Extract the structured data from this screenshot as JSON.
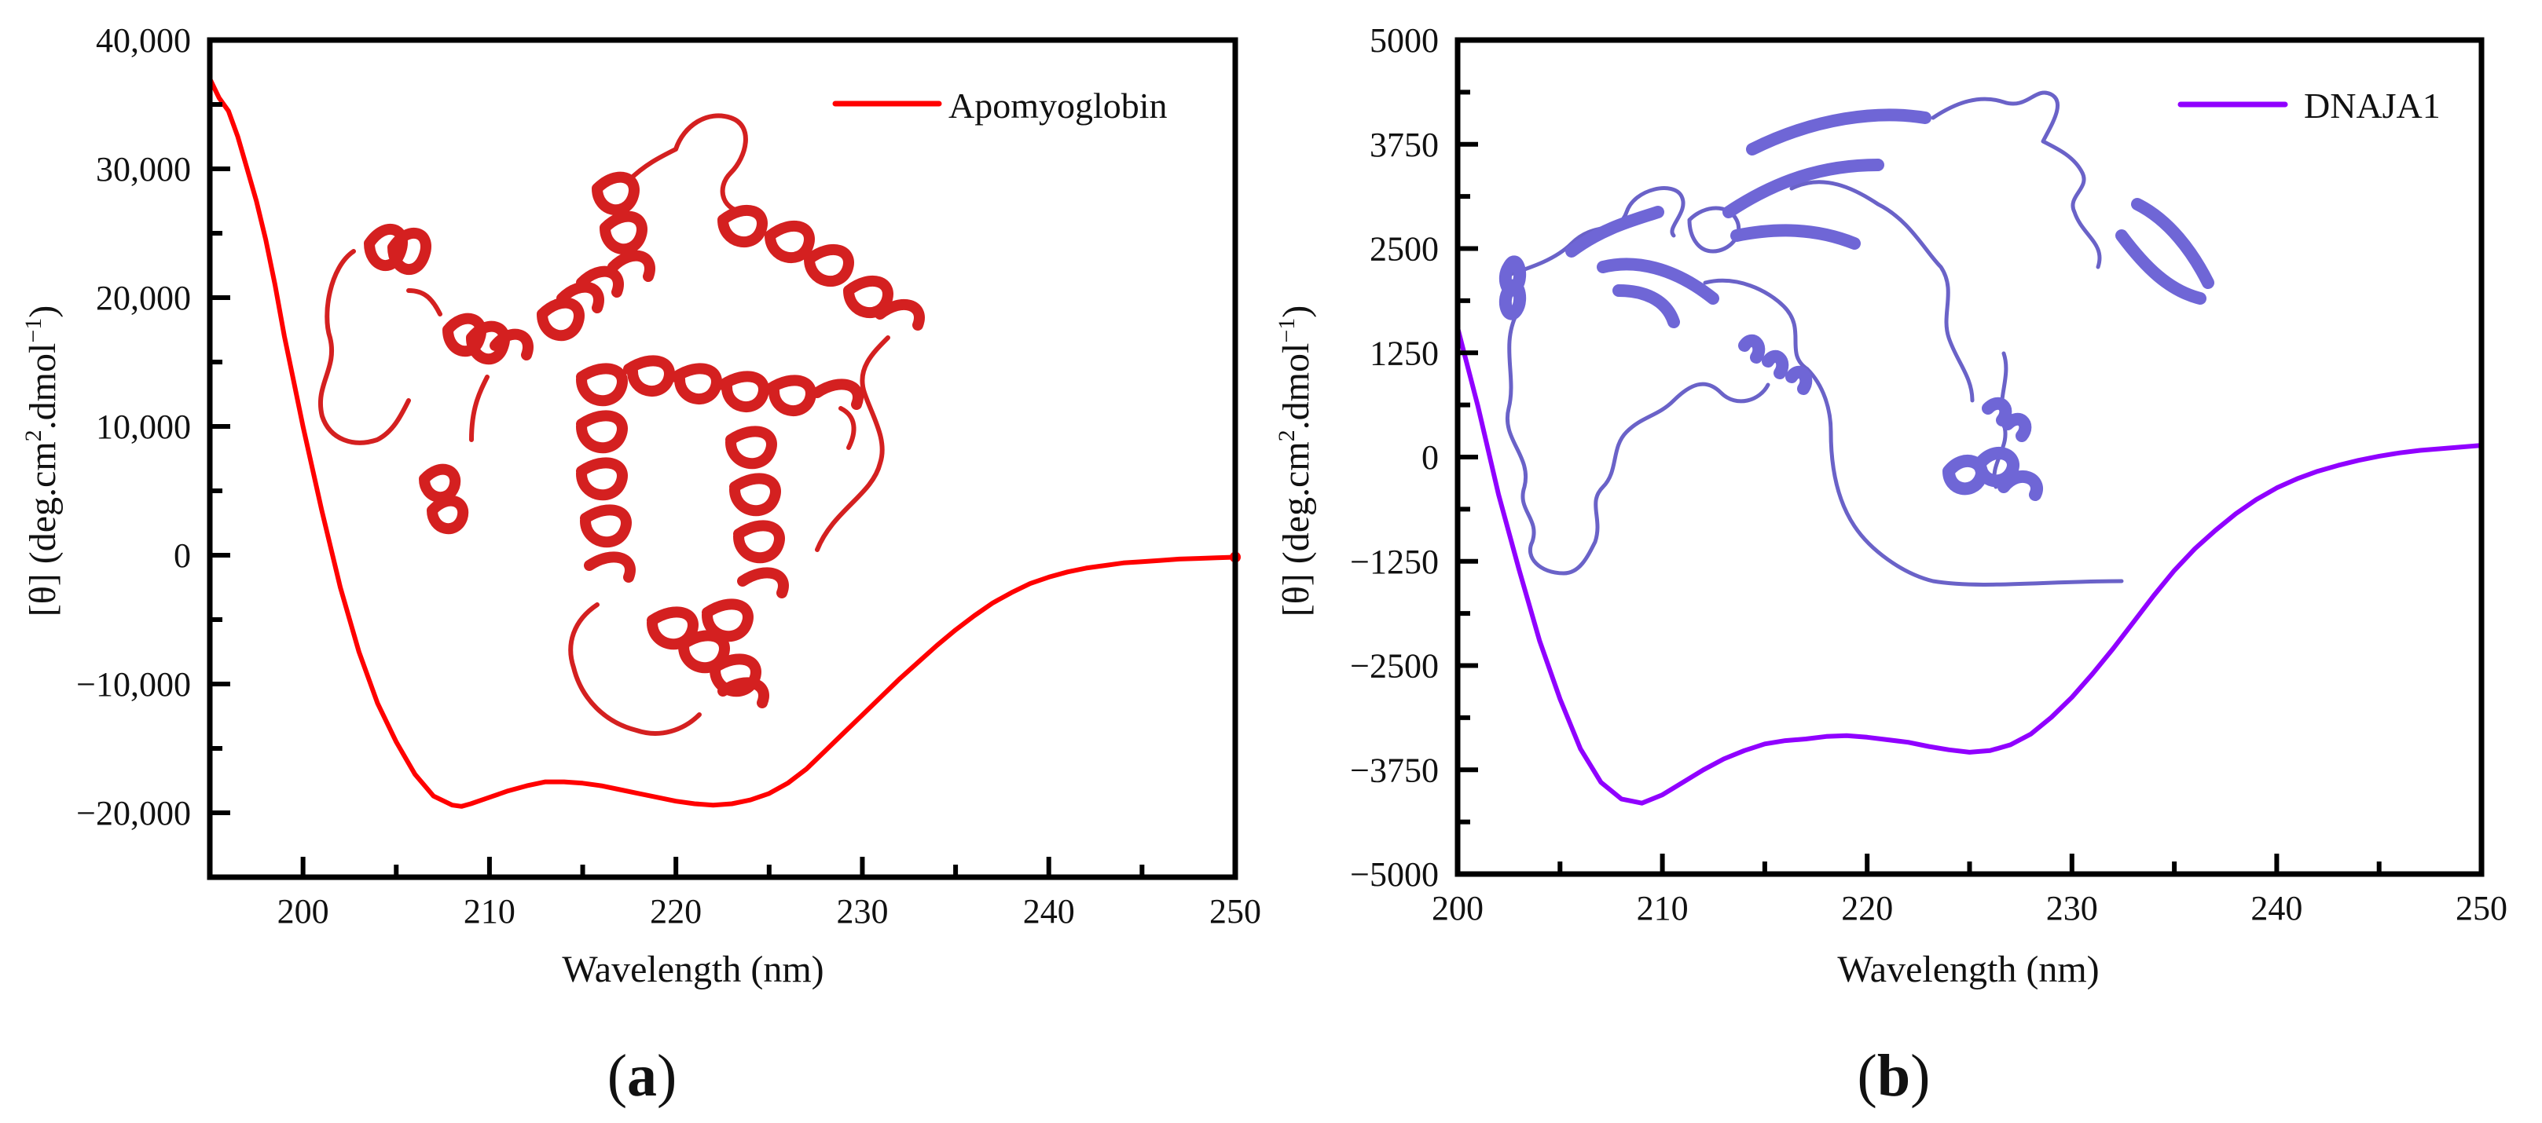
{
  "figure": {
    "panels": [
      {
        "id": "a",
        "label_open": "(",
        "label_letter": "a",
        "label_close": ")",
        "legend": "Apomyoglobin",
        "xlabel": "Wavelength (nm)",
        "ylabel": "[θ] (deg.cm².dmol⁻¹)",
        "line_color": "#ff0000",
        "structure_color": "#d42020"
      },
      {
        "id": "b",
        "label_open": "(",
        "label_letter": "b",
        "label_close": ")",
        "legend": "DNAJA1",
        "xlabel": "Wavelength (nm)",
        "ylabel": "[θ] (deg.cm².dmol⁻¹)",
        "line_color": "#9000ff",
        "structure_color": "#6a62c8"
      }
    ]
  },
  "chart_data": [
    {
      "type": "line",
      "title": "(a)",
      "xlabel": "Wavelength (nm)",
      "ylabel": "[θ] (deg.cm².dmol⁻¹)",
      "xlim": [
        195,
        250
      ],
      "ylim": [
        -25000,
        40000
      ],
      "xticks": [
        200,
        210,
        220,
        230,
        240,
        250
      ],
      "xtick_labels": [
        "200",
        "210",
        "220",
        "230",
        "240",
        "250"
      ],
      "yticks": [
        -20000,
        -10000,
        0,
        10000,
        20000,
        30000,
        40000
      ],
      "ytick_labels": [
        "−20,000",
        "−10,000",
        "0",
        "10,000",
        "20,000",
        "30,000",
        "40,000"
      ],
      "x_minor_step": 5,
      "y_minor_step": 5000,
      "grid": false,
      "legend_position": "upper right",
      "series": [
        {
          "name": "Apomyoglobin",
          "color": "#ff0000",
          "x": [
            195,
            195.5,
            196,
            196.5,
            197,
            197.5,
            198,
            198.5,
            199,
            199.5,
            200,
            201,
            202,
            203,
            204,
            205,
            206,
            207,
            208,
            208.5,
            209,
            210,
            211,
            212,
            213,
            214,
            215,
            216,
            217,
            218,
            219,
            220,
            221,
            222,
            223,
            224,
            225,
            226,
            227,
            228,
            229,
            230,
            231,
            232,
            233,
            234,
            235,
            236,
            237,
            238,
            239,
            240,
            241,
            242,
            243,
            244,
            245,
            246,
            247,
            248,
            249,
            250
          ],
          "y": [
            37000,
            35500,
            34500,
            32500,
            30000,
            27500,
            24500,
            21000,
            17000,
            13500,
            10000,
            3500,
            -2500,
            -7500,
            -11500,
            -14500,
            -17000,
            -18700,
            -19400,
            -19500,
            -19300,
            -18800,
            -18300,
            -17900,
            -17600,
            -17600,
            -17700,
            -17900,
            -18200,
            -18500,
            -18800,
            -19100,
            -19300,
            -19400,
            -19300,
            -19000,
            -18500,
            -17700,
            -16600,
            -15200,
            -13800,
            -12400,
            -11000,
            -9600,
            -8300,
            -7000,
            -5800,
            -4700,
            -3700,
            -2900,
            -2200,
            -1700,
            -1300,
            -1000,
            -800,
            -600,
            -500,
            -400,
            -300,
            -250,
            -200,
            -150
          ]
        }
      ]
    },
    {
      "type": "line",
      "title": "(b)",
      "xlabel": "Wavelength (nm)",
      "ylabel": "[θ] (deg.cm².dmol⁻¹)",
      "xlim": [
        200,
        250
      ],
      "ylim": [
        -5000,
        5000
      ],
      "xticks": [
        200,
        210,
        220,
        230,
        240,
        250
      ],
      "xtick_labels": [
        "200",
        "210",
        "220",
        "230",
        "240",
        "250"
      ],
      "yticks": [
        -5000,
        -3750,
        -2500,
        -1250,
        0,
        1250,
        2500,
        3750,
        5000
      ],
      "ytick_labels": [
        "−5000",
        "−3750",
        "−2500",
        "−1250",
        "0",
        "1250",
        "2500",
        "3750",
        "5000"
      ],
      "x_minor_step": 5,
      "y_minor_step": 625,
      "grid": false,
      "legend_position": "upper right",
      "series": [
        {
          "name": "DNAJA1",
          "color": "#9000ff",
          "x": [
            200,
            201,
            202,
            203,
            204,
            205,
            206,
            207,
            208,
            209,
            210,
            211,
            212,
            213,
            214,
            215,
            216,
            217,
            218,
            219,
            220,
            221,
            222,
            223,
            224,
            225,
            226,
            227,
            228,
            229,
            230,
            231,
            232,
            233,
            234,
            235,
            236,
            237,
            238,
            239,
            240,
            241,
            242,
            243,
            244,
            245,
            246,
            247,
            248,
            249,
            250
          ],
          "y": [
            1550,
            600,
            -450,
            -1350,
            -2200,
            -2900,
            -3500,
            -3900,
            -4100,
            -4150,
            -4050,
            -3900,
            -3750,
            -3620,
            -3520,
            -3440,
            -3400,
            -3380,
            -3350,
            -3340,
            -3360,
            -3390,
            -3420,
            -3470,
            -3510,
            -3540,
            -3520,
            -3450,
            -3320,
            -3120,
            -2880,
            -2600,
            -2300,
            -1980,
            -1660,
            -1360,
            -1100,
            -880,
            -680,
            -510,
            -370,
            -260,
            -170,
            -100,
            -40,
            10,
            50,
            80,
            100,
            120,
            140
          ]
        }
      ]
    }
  ]
}
